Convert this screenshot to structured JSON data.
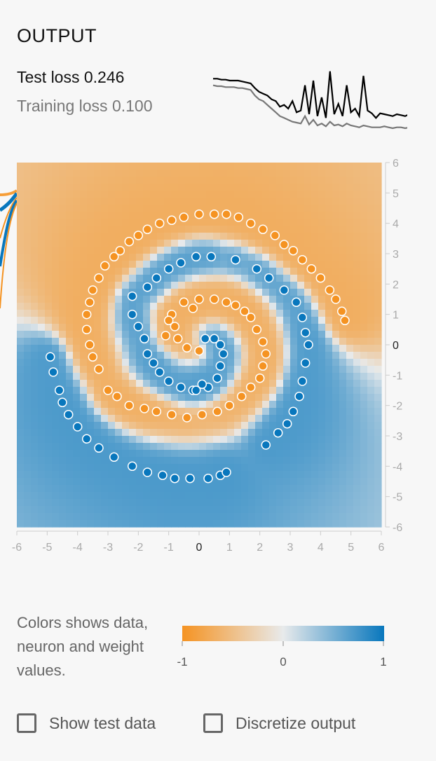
{
  "output": {
    "title": "OUTPUT",
    "test_loss_label": "Test loss",
    "test_loss_value": "0.246",
    "training_loss_label": "Training loss",
    "training_loss_value": "0.100"
  },
  "loss_chart": {
    "test_color": "#000000",
    "train_color": "#777777",
    "test": [
      0.62,
      0.62,
      0.61,
      0.61,
      0.6,
      0.6,
      0.6,
      0.59,
      0.58,
      0.57,
      0.52,
      0.48,
      0.46,
      0.44,
      0.4,
      0.38,
      0.32,
      0.34,
      0.3,
      0.38,
      0.26,
      0.28,
      0.55,
      0.24,
      0.6,
      0.22,
      0.42,
      0.2,
      0.7,
      0.24,
      0.35,
      0.22,
      0.55,
      0.26,
      0.3,
      0.22,
      0.65,
      0.28,
      0.25,
      0.2,
      0.25,
      0.24,
      0.23,
      0.22,
      0.24,
      0.23,
      0.22,
      0.24
    ],
    "train": [
      0.55,
      0.54,
      0.54,
      0.53,
      0.53,
      0.53,
      0.52,
      0.52,
      0.51,
      0.5,
      0.44,
      0.4,
      0.38,
      0.34,
      0.3,
      0.26,
      0.22,
      0.2,
      0.18,
      0.16,
      0.15,
      0.14,
      0.22,
      0.13,
      0.18,
      0.12,
      0.14,
      0.11,
      0.16,
      0.12,
      0.13,
      0.11,
      0.14,
      0.12,
      0.11,
      0.1,
      0.12,
      0.11,
      0.1,
      0.1,
      0.1,
      0.11,
      0.1,
      0.09,
      0.1,
      0.1,
      0.09,
      0.1
    ]
  },
  "plot": {
    "x_ticks": [
      "-6",
      "-5",
      "-4",
      "-3",
      "-2",
      "-1",
      "0",
      "1",
      "2",
      "3",
      "4",
      "5",
      "6"
    ],
    "y_ticks": [
      "6",
      "5",
      "4",
      "3",
      "2",
      "1",
      "0",
      "-1",
      "-2",
      "-3",
      "-4",
      "-5",
      "-6"
    ],
    "domain": [
      -6,
      6
    ],
    "orange": "#f59322",
    "blue": "#0877bd",
    "neutral": "#e8eaeb"
  },
  "points": {
    "orange": [
      [
        -3.5,
        -0.4
      ],
      [
        -3.3,
        -0.8
      ],
      [
        -3.0,
        -1.5
      ],
      [
        -3.6,
        0.0
      ],
      [
        -3.7,
        0.5
      ],
      [
        -3.7,
        1.0
      ],
      [
        -3.6,
        1.4
      ],
      [
        -3.5,
        1.8
      ],
      [
        -3.3,
        2.2
      ],
      [
        -3.1,
        2.6
      ],
      [
        -2.8,
        2.9
      ],
      [
        -2.6,
        3.1
      ],
      [
        -2.3,
        3.4
      ],
      [
        -2.0,
        3.6
      ],
      [
        -1.7,
        3.8
      ],
      [
        -1.3,
        4.0
      ],
      [
        -0.9,
        4.1
      ],
      [
        -0.5,
        4.2
      ],
      [
        0.0,
        4.3
      ],
      [
        0.5,
        4.3
      ],
      [
        0.9,
        4.3
      ],
      [
        1.3,
        4.2
      ],
      [
        1.7,
        4.0
      ],
      [
        2.1,
        3.8
      ],
      [
        2.5,
        3.6
      ],
      [
        2.8,
        3.3
      ],
      [
        3.1,
        3.1
      ],
      [
        3.4,
        2.8
      ],
      [
        3.7,
        2.5
      ],
      [
        4.0,
        2.2
      ],
      [
        4.3,
        1.8
      ],
      [
        4.5,
        1.5
      ],
      [
        4.7,
        1.1
      ],
      [
        4.8,
        0.8
      ],
      [
        0.0,
        1.5
      ],
      [
        0.5,
        1.5
      ],
      [
        0.9,
        1.4
      ],
      [
        1.2,
        1.3
      ],
      [
        1.5,
        1.1
      ],
      [
        1.7,
        0.9
      ],
      [
        1.9,
        0.5
      ],
      [
        2.1,
        0.1
      ],
      [
        2.2,
        -0.3
      ],
      [
        2.1,
        -0.7
      ],
      [
        2.0,
        -1.1
      ],
      [
        1.7,
        -1.4
      ],
      [
        1.4,
        -1.7
      ],
      [
        1.0,
        -2.0
      ],
      [
        0.6,
        -2.2
      ],
      [
        0.1,
        -2.3
      ],
      [
        -0.4,
        -2.4
      ],
      [
        -0.9,
        -2.3
      ],
      [
        -1.4,
        -2.2
      ],
      [
        -1.8,
        -2.1
      ],
      [
        -2.3,
        -2.0
      ],
      [
        -2.7,
        -1.7
      ],
      [
        -0.9,
        1.0
      ],
      [
        -0.8,
        0.6
      ],
      [
        -0.7,
        0.2
      ],
      [
        -0.4,
        -0.1
      ],
      [
        0.0,
        -0.2
      ],
      [
        -0.2,
        1.2
      ],
      [
        -0.5,
        1.4
      ],
      [
        -1.0,
        0.8
      ],
      [
        -1.1,
        0.3
      ]
    ],
    "blue": [
      [
        -4.9,
        -0.4
      ],
      [
        -4.8,
        -0.9
      ],
      [
        -4.6,
        -1.5
      ],
      [
        -4.5,
        -1.9
      ],
      [
        -4.3,
        -2.3
      ],
      [
        -4.0,
        -2.7
      ],
      [
        -3.7,
        -3.1
      ],
      [
        -3.3,
        -3.4
      ],
      [
        -2.8,
        -3.7
      ],
      [
        -2.2,
        -4.0
      ],
      [
        -1.7,
        -4.2
      ],
      [
        -1.2,
        -4.3
      ],
      [
        -0.8,
        -4.4
      ],
      [
        -0.3,
        -4.4
      ],
      [
        0.3,
        -4.4
      ],
      [
        0.7,
        -4.3
      ],
      [
        0.9,
        -4.2
      ],
      [
        -2.2,
        1.6
      ],
      [
        -2.2,
        1.0
      ],
      [
        -2.0,
        0.6
      ],
      [
        -1.8,
        0.2
      ],
      [
        -1.7,
        -0.3
      ],
      [
        -1.5,
        -0.6
      ],
      [
        -1.3,
        -0.9
      ],
      [
        -1.0,
        -1.2
      ],
      [
        -0.6,
        -1.4
      ],
      [
        -0.2,
        -1.5
      ],
      [
        0.3,
        -1.4
      ],
      [
        0.6,
        -1.1
      ],
      [
        0.7,
        -0.7
      ],
      [
        0.8,
        -0.3
      ],
      [
        0.7,
        0.0
      ],
      [
        0.5,
        0.2
      ],
      [
        0.2,
        0.2
      ],
      [
        -1.7,
        1.9
      ],
      [
        -1.4,
        2.2
      ],
      [
        -1.0,
        2.5
      ],
      [
        -0.6,
        2.7
      ],
      [
        -0.1,
        2.9
      ],
      [
        0.4,
        2.9
      ],
      [
        1.2,
        2.8
      ],
      [
        1.9,
        2.5
      ],
      [
        2.3,
        2.2
      ],
      [
        2.8,
        1.8
      ],
      [
        3.2,
        1.4
      ],
      [
        3.4,
        0.9
      ],
      [
        3.5,
        0.4
      ],
      [
        3.6,
        0.0
      ],
      [
        3.5,
        -0.6
      ],
      [
        3.4,
        -1.2
      ],
      [
        3.3,
        -1.7
      ],
      [
        3.1,
        -2.2
      ],
      [
        2.9,
        -2.6
      ],
      [
        2.6,
        -2.9
      ],
      [
        2.2,
        -3.3
      ],
      [
        0.1,
        -1.3
      ],
      [
        -0.1,
        -1.5
      ]
    ]
  },
  "legend": {
    "description": "Colors shows data, neuron and weight values.",
    "min_label": "-1",
    "mid_label": "0",
    "max_label": "1"
  },
  "controls": {
    "show_test_label": "Show test data",
    "show_test_checked": false,
    "discretize_label": "Discretize output",
    "discretize_checked": false
  }
}
